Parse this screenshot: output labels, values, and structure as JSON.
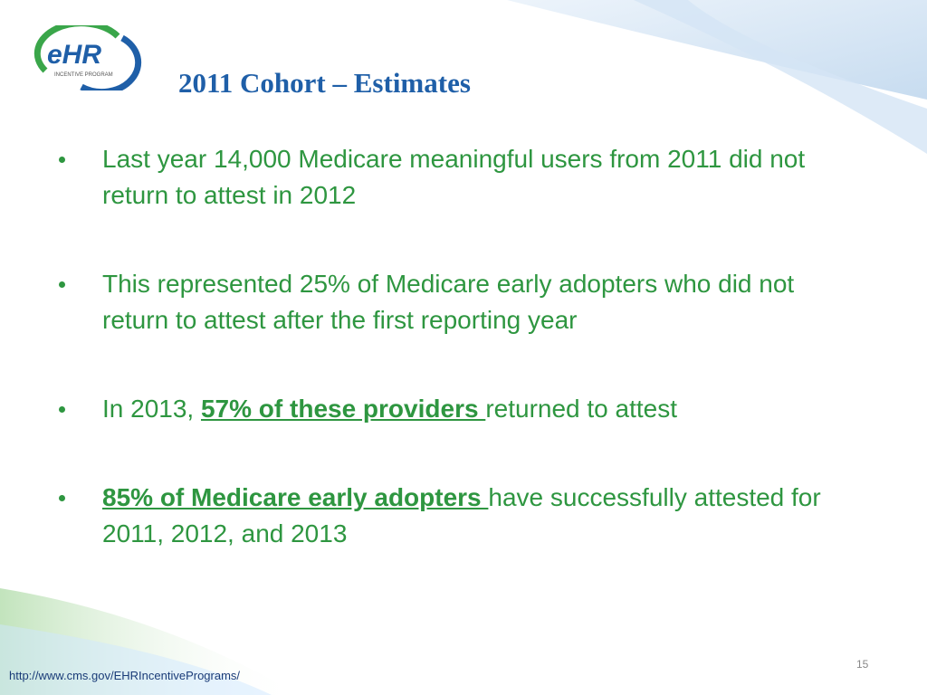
{
  "logo": {
    "mark": "eHR",
    "tagline": "INCENTIVE PROGRAM"
  },
  "title": "2011 Cohort – Estimates",
  "bullets": [
    {
      "segments": [
        {
          "text": "Last year 14,000 Medicare meaningful users from 2011 did not return to attest in 2012",
          "emphasis": false
        }
      ]
    },
    {
      "segments": [
        {
          "text": "This represented 25% of Medicare early adopters who did not return to attest after the first reporting year",
          "emphasis": false
        }
      ]
    },
    {
      "segments": [
        {
          "text": "In 2013, ",
          "emphasis": false
        },
        {
          "text": "57% of these providers ",
          "emphasis": true
        },
        {
          "text": "returned to attest",
          "emphasis": false
        }
      ]
    },
    {
      "segments": [
        {
          "text": "85% of Medicare early adopters ",
          "emphasis": true
        },
        {
          "text": "have successfully attested for 2011, 2012, and 2013",
          "emphasis": false
        }
      ]
    }
  ],
  "footer": {
    "url": "http://www.cms.gov/EHRIncentivePrograms/",
    "page_number": "15"
  }
}
